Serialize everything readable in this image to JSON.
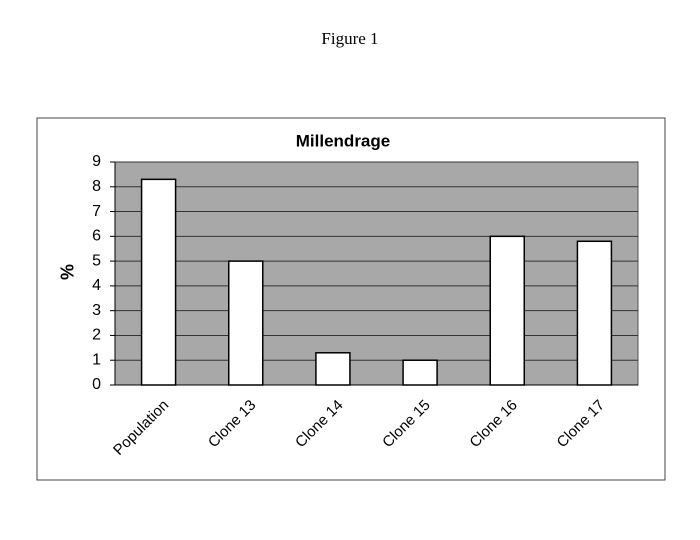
{
  "figure_caption": "Figure 1",
  "chart_data": {
    "type": "bar",
    "title": "Millendrage",
    "y_label": "%",
    "categories": [
      "Population",
      "Clone 13",
      "Clone 14",
      "Clone 15",
      "Clone 16",
      "Clone 17"
    ],
    "values": [
      8.3,
      5.0,
      1.3,
      1.0,
      6.0,
      5.8
    ],
    "color": "#ffffff",
    "ylim": [
      0,
      9
    ],
    "yticks": [
      0,
      1,
      2,
      3,
      4,
      5,
      6,
      7,
      8,
      9
    ],
    "grid": true
  }
}
